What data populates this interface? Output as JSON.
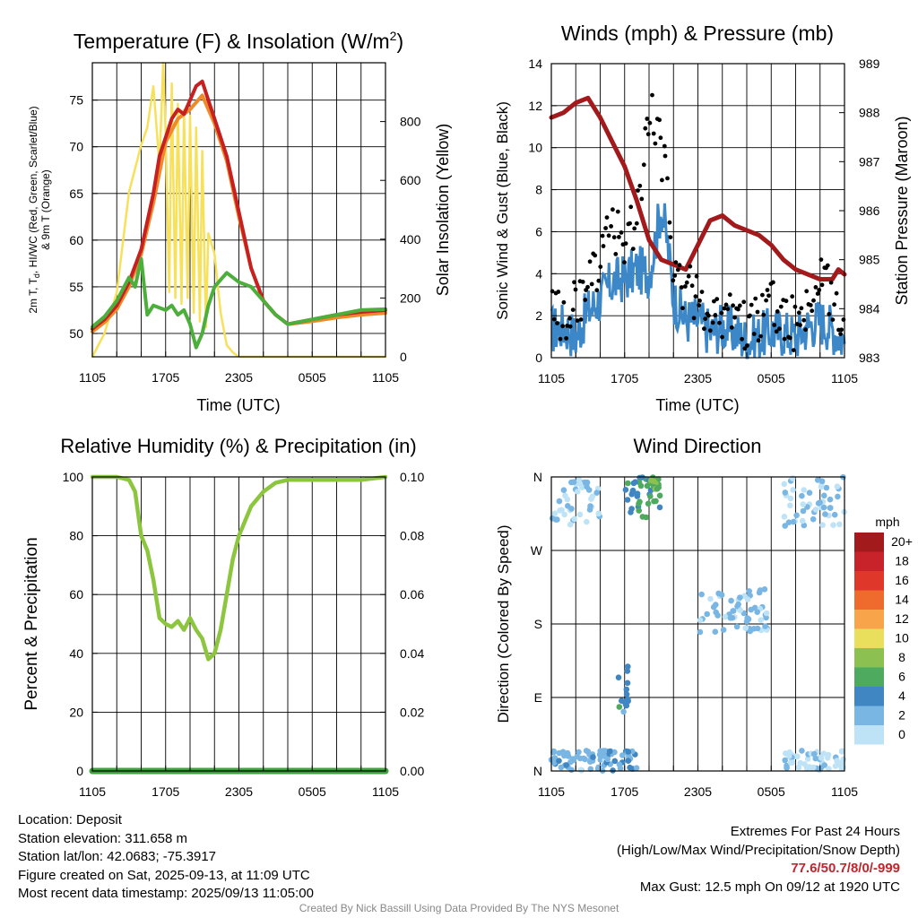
{
  "temp_panel": {
    "title": "Temperature (F) & Insolation (W/m",
    "title_sup": "2",
    "title_end": ")",
    "ylabel_line1_a": "2m T, T",
    "ylabel_line1_sub": "d",
    "ylabel_line1_b": ", HI/WC (Red, Green, Scarlet/Blue)",
    "ylabel_line2": "& 9m T (Orange)",
    "y2label": "Solar Insolation (Yellow)",
    "xlabel": "Time (UTC)"
  },
  "wind_panel": {
    "title": "Winds (mph) & Pressure (mb)",
    "ylabel": "Sonic Wind & Gust (Blue, Black)",
    "y2label": "Station Pressure (Maroon)",
    "xlabel": "Time (UTC)"
  },
  "rh_panel": {
    "title": "Relative Humidity (%) & Precipitation (in)",
    "ylabel": "Percent & Precipitation"
  },
  "dir_panel": {
    "title": "Wind Direction",
    "ylabel": "Direction (Colored By Speed)",
    "legend_title": "mph",
    "legend_labels": [
      "20+",
      "18",
      "16",
      "14",
      "12",
      "10",
      "8",
      "6",
      "4",
      "2",
      "0"
    ],
    "legend_colors": [
      "#a31a1c",
      "#c8232a",
      "#e0372b",
      "#ef6a2d",
      "#f7a44a",
      "#e9df5c",
      "#8cc152",
      "#4eaa5f",
      "#3f86c2",
      "#79b6e3",
      "#bfe3f6"
    ]
  },
  "colors": {
    "temp": "#c62020",
    "temp9m": "#ef8a2a",
    "dewpoint": "#4caf3c",
    "solar": "#f7e05a",
    "wind": "#3b87c8",
    "gust": "#000000",
    "pressure": "#a31a1c",
    "rh": "#8cc63e",
    "precip": "#3da33d"
  },
  "chart_data": [
    {
      "type": "line",
      "title": "Temperature (F) & Insolation (W/m2)",
      "xlabel": "Time (UTC)",
      "x_tick_labels": [
        "1105",
        "1705",
        "2305",
        "0505",
        "1105"
      ],
      "ylim": [
        47.5,
        79
      ],
      "y_ticks": [
        50,
        55,
        60,
        65,
        70,
        75
      ],
      "y2lim": [
        0,
        1000
      ],
      "y2_ticks": [
        0,
        200,
        400,
        600,
        800
      ],
      "series": [
        {
          "name": "2m T (Red)",
          "axis": "left",
          "x": [
            0,
            1,
            2,
            3,
            4,
            5,
            5.5,
            6,
            6.5,
            7,
            7.5,
            8,
            8.5,
            9,
            9.5,
            10,
            11,
            12,
            13,
            14,
            15,
            16,
            18,
            20,
            22,
            24
          ],
          "y": [
            50.5,
            51.5,
            53,
            55.5,
            59,
            65,
            69,
            71,
            73,
            74,
            73.5,
            75,
            76.5,
            77,
            75,
            73,
            69,
            63,
            57,
            53.5,
            52,
            51,
            51.5,
            52,
            52.3,
            52.5
          ]
        },
        {
          "name": "9m T (Orange)",
          "axis": "left",
          "x": [
            0,
            1,
            2,
            3,
            4,
            5,
            6,
            7,
            8,
            9,
            10,
            11,
            12,
            13,
            14,
            15,
            16,
            18,
            20,
            22,
            24
          ],
          "y": [
            50.2,
            51.2,
            52.6,
            55,
            58.5,
            64,
            70.5,
            73,
            74,
            75.5,
            72.5,
            68.5,
            62.5,
            57,
            53.5,
            52,
            51,
            51.3,
            51.7,
            52,
            52.2
          ]
        },
        {
          "name": "Td (Green)",
          "axis": "left",
          "x": [
            0,
            1,
            2,
            3,
            3.5,
            4,
            4.5,
            5,
            6,
            6.5,
            7,
            7.5,
            8,
            8.5,
            9,
            9.5,
            10,
            11,
            12,
            13,
            14,
            15,
            16,
            18,
            20,
            22,
            24
          ],
          "y": [
            50.7,
            51.8,
            53.5,
            56,
            55,
            58,
            52,
            53,
            52.5,
            53,
            52,
            52.5,
            51,
            48.5,
            50,
            53,
            55,
            56.5,
            55.5,
            55,
            53.5,
            52,
            51,
            51.5,
            52,
            52.5,
            52.6
          ]
        },
        {
          "name": "Solar Insolation (Yellow)",
          "axis": "right",
          "x": [
            0,
            1,
            2,
            3,
            3.5,
            4,
            4.5,
            5,
            5.5,
            5.8,
            6,
            6.3,
            6.5,
            6.8,
            7,
            7.3,
            7.5,
            7.8,
            8,
            8.3,
            8.5,
            8.8,
            9,
            9.3,
            9.5,
            10,
            10.5,
            11,
            11.5,
            12,
            13,
            24
          ],
          "y": [
            0,
            80,
            220,
            560,
            640,
            720,
            780,
            920,
            650,
            1000,
            760,
            220,
            930,
            200,
            860,
            180,
            840,
            200,
            820,
            150,
            780,
            120,
            700,
            100,
            420,
            350,
            150,
            40,
            15,
            0,
            0,
            0
          ]
        }
      ]
    },
    {
      "type": "line",
      "title": "Winds (mph) & Pressure (mb)",
      "xlabel": "Time (UTC)",
      "x_tick_labels": [
        "1105",
        "1705",
        "2305",
        "0505",
        "1105"
      ],
      "ylim": [
        0,
        14
      ],
      "y_ticks": [
        0,
        2,
        4,
        6,
        8,
        10,
        12,
        14
      ],
      "y2lim": [
        983,
        989
      ],
      "y2_ticks": [
        983,
        984,
        985,
        986,
        987,
        988,
        989
      ],
      "series": [
        {
          "name": "Sonic Wind (Blue)",
          "axis": "left",
          "x": [
            0,
            1,
            2,
            3,
            4,
            5,
            6,
            7,
            8,
            8.5,
            9,
            9.5,
            10,
            11,
            12,
            13,
            14,
            15,
            16,
            17,
            18,
            19,
            20,
            21,
            22,
            23,
            24
          ],
          "y": [
            1.3,
            1.5,
            1.0,
            2.2,
            2.8,
            3.6,
            3.8,
            4.2,
            4.0,
            5.5,
            7.2,
            5.5,
            2.8,
            1.8,
            1.8,
            1.2,
            1.5,
            1.2,
            0.8,
            1.0,
            1.3,
            1.2,
            1.0,
            1.5,
            1.8,
            1.4,
            0.8
          ]
        },
        {
          "name": "Gust (Black)",
          "axis": "left",
          "x": [
            0,
            1,
            2,
            3,
            4,
            5,
            6,
            7,
            7.5,
            8,
            8.5,
            9,
            9.5,
            10,
            11,
            12,
            13,
            14,
            15,
            16,
            17,
            18,
            19,
            20,
            21,
            22,
            23,
            24
          ],
          "y": [
            2.5,
            1.8,
            2.5,
            3.2,
            4.8,
            6.0,
            5.5,
            6.8,
            9.0,
            12.3,
            11.5,
            9.5,
            8.5,
            4.0,
            3.5,
            2.8,
            2.2,
            2.0,
            1.8,
            1.5,
            1.9,
            2.5,
            2.0,
            1.5,
            2.5,
            3.5,
            3.0,
            1.5
          ]
        },
        {
          "name": "Station Pressure (Maroon)",
          "axis": "right",
          "x": [
            0,
            1,
            2,
            3,
            4,
            5,
            6,
            7,
            8,
            9,
            10,
            11,
            12,
            13,
            14,
            15,
            16,
            17,
            18,
            19,
            20,
            21,
            22,
            23,
            23.5,
            24
          ],
          "y": [
            987.9,
            988.0,
            988.2,
            988.3,
            987.9,
            987.4,
            986.9,
            986.2,
            985.4,
            985.0,
            984.9,
            984.8,
            985.3,
            985.8,
            985.9,
            985.7,
            985.6,
            985.5,
            985.3,
            985.0,
            984.8,
            984.7,
            984.6,
            984.6,
            984.8,
            984.7
          ]
        }
      ]
    },
    {
      "type": "line",
      "title": "Relative Humidity (%) & Precipitation (in)",
      "ylabel": "Percent & Precipitation",
      "x_tick_labels": [
        "1105",
        "1705",
        "2305",
        "0505",
        "1105"
      ],
      "ylim": [
        0,
        100
      ],
      "y_ticks": [
        0,
        20,
        40,
        60,
        80,
        100
      ],
      "y2lim": [
        0,
        0.1
      ],
      "y2_tick_labels": [
        "0.00",
        "0.02",
        "0.04",
        "0.06",
        "0.08",
        "0.10"
      ],
      "series": [
        {
          "name": "Relative Humidity",
          "axis": "left",
          "x": [
            0,
            1,
            2,
            3,
            3.5,
            4,
            4.5,
            5,
            5.5,
            6,
            6.5,
            7,
            7.5,
            8,
            8.5,
            9,
            9.5,
            10,
            10.5,
            11,
            11.5,
            12,
            13,
            14,
            15,
            16,
            18,
            20,
            22,
            24
          ],
          "y": [
            100,
            100,
            100,
            99,
            95,
            80,
            75,
            65,
            52,
            50,
            49,
            51,
            48,
            52,
            48,
            45,
            38,
            40,
            48,
            60,
            72,
            80,
            90,
            95,
            98,
            99,
            99,
            99,
            99,
            100
          ]
        },
        {
          "name": "Precipitation",
          "axis": "right",
          "x": [
            0,
            24
          ],
          "y": [
            0,
            0
          ]
        }
      ]
    },
    {
      "type": "scatter",
      "title": "Wind Direction",
      "ylabel": "Direction (Colored By Speed)",
      "x_tick_labels": [
        "1105",
        "1705",
        "2305",
        "0505",
        "1105"
      ],
      "y_tick_labels": [
        "N",
        "E",
        "S",
        "W",
        "N"
      ],
      "ylim": [
        0,
        360
      ],
      "legend": "right",
      "point_clusters": [
        {
          "x_range": [
            0,
            4
          ],
          "dir_range": [
            300,
            360
          ],
          "speed": 1
        },
        {
          "x_range": [
            0,
            5
          ],
          "dir_range": [
            0,
            25
          ],
          "speed": 2
        },
        {
          "x_range": [
            4,
            7
          ],
          "dir_range": [
            0,
            25
          ],
          "speed": 3
        },
        {
          "x_range": [
            5.5,
            6.5
          ],
          "dir_range": [
            70,
            140
          ],
          "speed": 4
        },
        {
          "x_range": [
            6,
            9
          ],
          "dir_range": [
            310,
            360
          ],
          "speed": 5
        },
        {
          "x_range": [
            8,
            8.8
          ],
          "dir_range": [
            345,
            360
          ],
          "speed": 7
        },
        {
          "x_range": [
            12,
            18
          ],
          "dir_range": [
            170,
            225
          ],
          "speed": 1.5
        },
        {
          "x_range": [
            19,
            24
          ],
          "dir_range": [
            300,
            360
          ],
          "speed": 0.8
        },
        {
          "x_range": [
            19,
            24
          ],
          "dir_range": [
            0,
            25
          ],
          "speed": 0.8
        }
      ]
    }
  ],
  "info": {
    "location": "Location: Deposit",
    "elevation": "Station elevation: 311.658 m",
    "latlon": "Station lat/lon: 42.0683; -75.3917",
    "created": "Figure created on Sat, 2025-09-13, at 11:09 UTC",
    "recent": "Most recent data timestamp: 2025/09/13 11:05:00",
    "extremes_title": "Extremes For Past 24 Hours",
    "extremes_subtitle": "(High/Low/Max Wind/Precipitation/Snow Depth)",
    "extremes_values": "77.6/50.7/8/0/-999",
    "max_gust": "Max Gust: 12.5 mph On 09/12 at 1920 UTC",
    "credit": "Created By Nick Bassill Using Data Provided By The NYS Mesonet"
  }
}
